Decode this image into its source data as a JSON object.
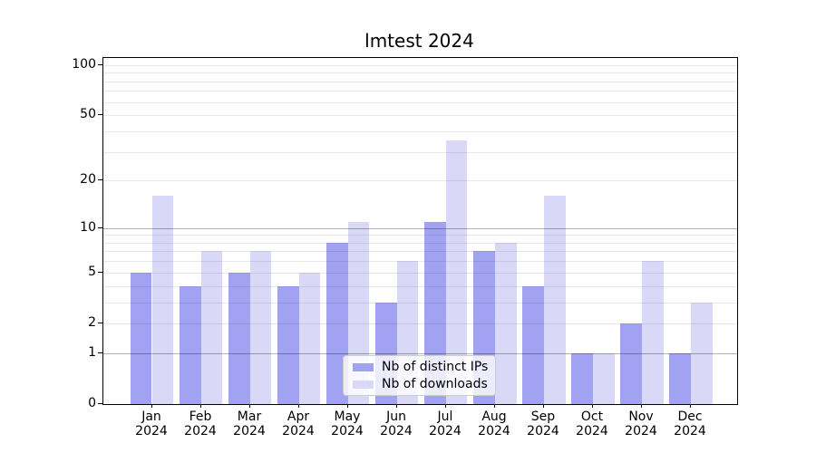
{
  "title": "lmtest 2024",
  "chart_data": {
    "type": "bar",
    "title": "lmtest 2024",
    "categories": [
      "Jan 2024",
      "Feb 2024",
      "Mar 2024",
      "Apr 2024",
      "May 2024",
      "Jun 2024",
      "Jul 2024",
      "Aug 2024",
      "Sep 2024",
      "Oct 2024",
      "Nov 2024",
      "Dec 2024"
    ],
    "months": [
      "Jan",
      "Feb",
      "Mar",
      "Apr",
      "May",
      "Jun",
      "Jul",
      "Aug",
      "Sep",
      "Oct",
      "Nov",
      "Dec"
    ],
    "year_label": "2024",
    "series": [
      {
        "name": "Nb of distinct IPs",
        "color": "#a2a2f3",
        "values": [
          5,
          4,
          5,
          4,
          8,
          3,
          11,
          7,
          4,
          1,
          2,
          1
        ]
      },
      {
        "name": "Nb of downloads",
        "color": "#d9d9f7",
        "values": [
          16,
          7,
          7,
          5,
          11,
          6,
          35,
          8,
          16,
          1,
          6,
          3
        ]
      }
    ],
    "xlabel": "",
    "ylabel": "",
    "yscale": "log1p",
    "ylim": [
      0,
      110
    ],
    "yticks": [
      0,
      1,
      2,
      5,
      10,
      20,
      50,
      100
    ],
    "ytick_labels": [
      "0",
      "1",
      "2",
      "5",
      "10",
      "20",
      "50",
      "100"
    ],
    "minor_grid_values": [
      2,
      3,
      4,
      5,
      6,
      7,
      8,
      9,
      20,
      30,
      40,
      50,
      60,
      70,
      80,
      90,
      100
    ],
    "major_grid_values": [
      1,
      10
    ],
    "grid": true,
    "legend_position": "lower center"
  },
  "colors": {
    "minor_grid": "rgba(0,0,0,0.085)",
    "major_grid": "rgba(0,0,0,0.30)",
    "axis": "#000000",
    "background": "#ffffff"
  }
}
